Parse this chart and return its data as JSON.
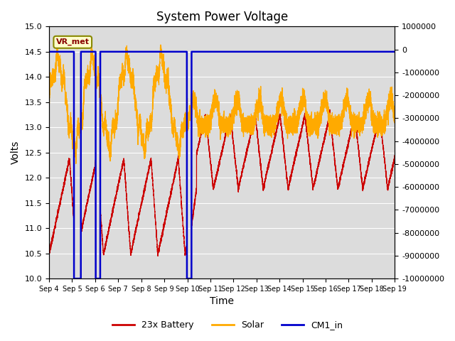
{
  "title": "System Power Voltage",
  "xlabel": "Time",
  "ylabel": "Volts",
  "ylim_left": [
    10.0,
    15.0
  ],
  "ylim_right": [
    -10000000,
    1000000
  ],
  "yticks_left": [
    10.0,
    10.5,
    11.0,
    11.5,
    12.0,
    12.5,
    13.0,
    13.5,
    14.0,
    14.5,
    15.0
  ],
  "yticks_right": [
    1000000,
    0,
    -1000000,
    -2000000,
    -3000000,
    -4000000,
    -5000000,
    -6000000,
    -7000000,
    -8000000,
    -9000000,
    -10000000
  ],
  "xtick_labels": [
    "Sep 4",
    "Sep 5",
    "Sep 6",
    "Sep 7",
    "Sep 8",
    "Sep 9",
    "Sep 10",
    "Sep 11",
    "Sep 12",
    "Sep 13",
    "Sep 14",
    "Sep 15",
    "Sep 16",
    "Sep 17",
    "Sep 18",
    "Sep 19"
  ],
  "bg_color": "#dcdcdc",
  "grid_color": "#ffffff",
  "color_battery": "#cc0000",
  "color_solar": "#ffaa00",
  "color_cm1": "#0000cc",
  "legend_labels": [
    "23x Battery",
    "Solar",
    "CM1_in"
  ],
  "vr_met_label": "VR_met",
  "cm1_flat": 14.5,
  "figsize": [
    6.4,
    4.8
  ],
  "dpi": 100
}
